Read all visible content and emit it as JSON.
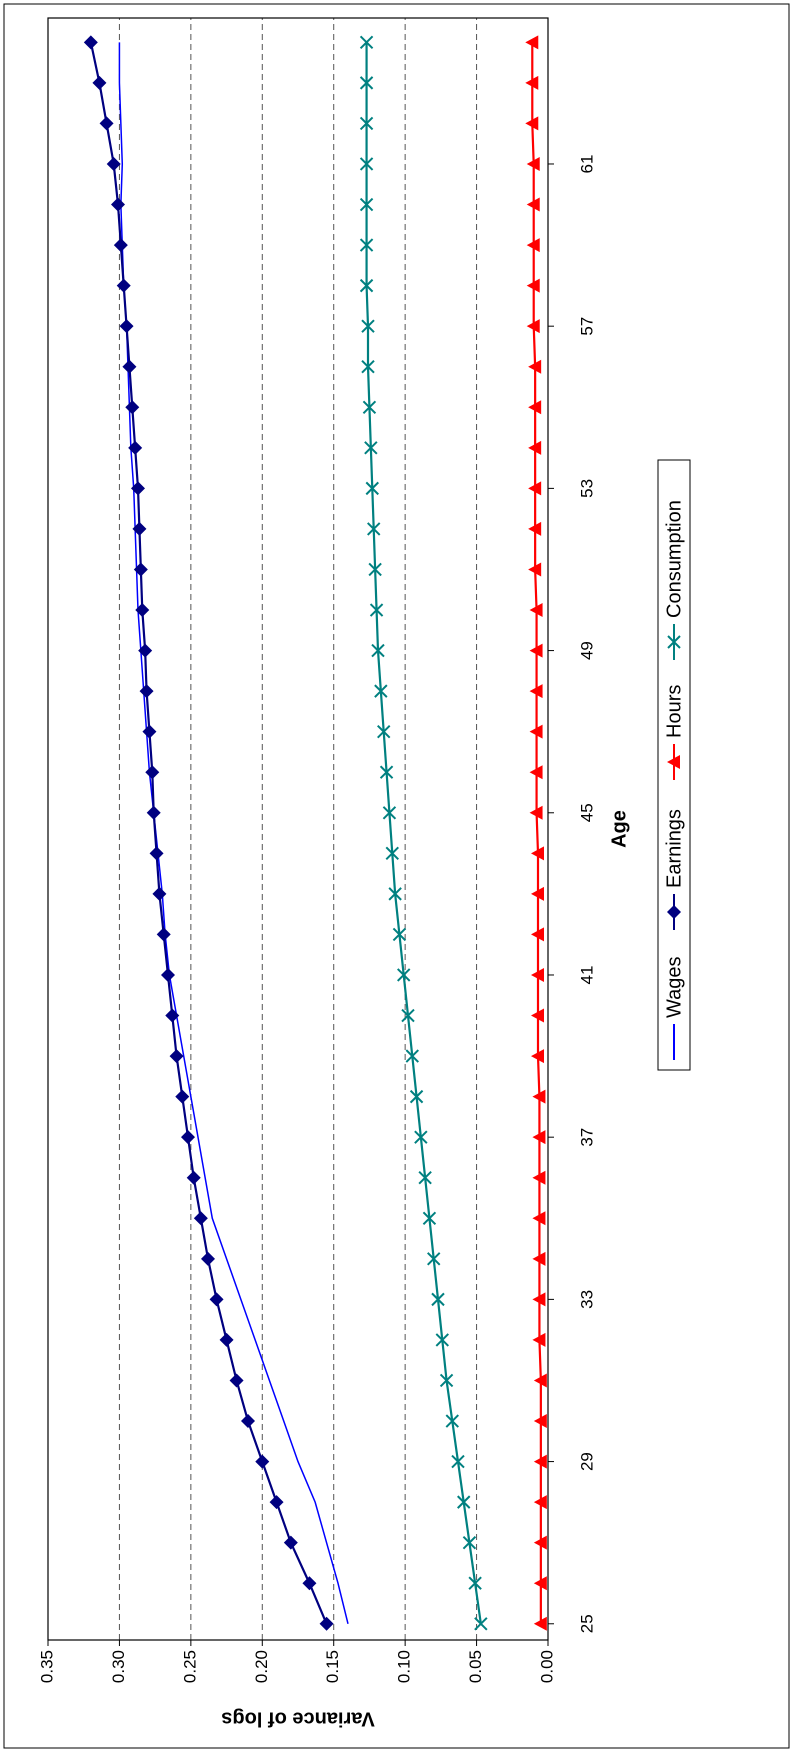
{
  "chart_data": {
    "type": "line",
    "xlabel": "Age",
    "ylabel": "Variance of logs",
    "x": [
      25,
      26,
      27,
      28,
      29,
      30,
      31,
      32,
      33,
      34,
      35,
      36,
      37,
      38,
      39,
      40,
      41,
      42,
      43,
      44,
      45,
      46,
      47,
      48,
      49,
      50,
      51,
      52,
      53,
      54,
      55,
      56,
      57,
      58,
      59,
      60,
      61,
      62,
      63,
      64
    ],
    "xlim": [
      24.6,
      64.6
    ],
    "xticks": [
      25,
      29,
      33,
      37,
      41,
      45,
      49,
      53,
      57,
      61
    ],
    "ylim": [
      0,
      0.35
    ],
    "yticks": [
      {
        "value": 0,
        "label": "0.00"
      },
      0.05,
      {
        "value": 0.1,
        "label": "0.10"
      },
      0.15,
      {
        "value": 0.2,
        "label": "0.20"
      },
      0.25,
      {
        "value": 0.3,
        "label": "0.30"
      },
      0.35
    ],
    "grid": true,
    "legend": "bottom",
    "series": [
      {
        "name": "Wages",
        "color": "#0000ff",
        "marker": "none",
        "values": [
          0.14,
          0.147,
          0.155,
          0.163,
          0.175,
          0.185,
          0.195,
          0.205,
          0.215,
          0.225,
          0.235,
          0.24,
          0.245,
          0.25,
          0.255,
          0.26,
          0.265,
          0.268,
          0.27,
          0.273,
          0.276,
          0.279,
          0.281,
          0.283,
          0.285,
          0.287,
          0.288,
          0.289,
          0.29,
          0.292,
          0.293,
          0.294,
          0.295,
          0.297,
          0.298,
          0.299,
          0.298,
          0.299,
          0.3,
          0.3
        ]
      },
      {
        "name": "Earnings",
        "color": "#000080",
        "marker": "diamond",
        "values": [
          0.155,
          0.167,
          0.18,
          0.19,
          0.2,
          0.21,
          0.218,
          0.225,
          0.232,
          0.238,
          0.243,
          0.248,
          0.252,
          0.256,
          0.26,
          0.263,
          0.266,
          0.269,
          0.272,
          0.274,
          0.276,
          0.277,
          0.279,
          0.281,
          0.282,
          0.284,
          0.285,
          0.286,
          0.287,
          0.289,
          0.291,
          0.293,
          0.295,
          0.297,
          0.299,
          0.301,
          0.304,
          0.309,
          0.314,
          0.32
        ]
      },
      {
        "name": "Hours",
        "color": "#ff0000",
        "marker": "triangle",
        "values": [
          0.005,
          0.005,
          0.005,
          0.005,
          0.005,
          0.005,
          0.005,
          0.006,
          0.006,
          0.006,
          0.006,
          0.006,
          0.006,
          0.006,
          0.007,
          0.007,
          0.007,
          0.007,
          0.007,
          0.007,
          0.008,
          0.008,
          0.008,
          0.008,
          0.008,
          0.008,
          0.009,
          0.009,
          0.009,
          0.009,
          0.009,
          0.009,
          0.01,
          0.01,
          0.01,
          0.01,
          0.01,
          0.011,
          0.011,
          0.011
        ]
      },
      {
        "name": "Consumption",
        "color": "#008080",
        "marker": "x",
        "values": [
          0.047,
          0.051,
          0.055,
          0.059,
          0.063,
          0.067,
          0.071,
          0.074,
          0.077,
          0.08,
          0.083,
          0.086,
          0.089,
          0.092,
          0.095,
          0.098,
          0.101,
          0.104,
          0.107,
          0.109,
          0.111,
          0.113,
          0.115,
          0.117,
          0.119,
          0.12,
          0.121,
          0.122,
          0.123,
          0.124,
          0.125,
          0.126,
          0.126,
          0.127,
          0.127,
          0.127,
          0.127,
          0.127,
          0.127,
          0.127
        ]
      }
    ]
  }
}
